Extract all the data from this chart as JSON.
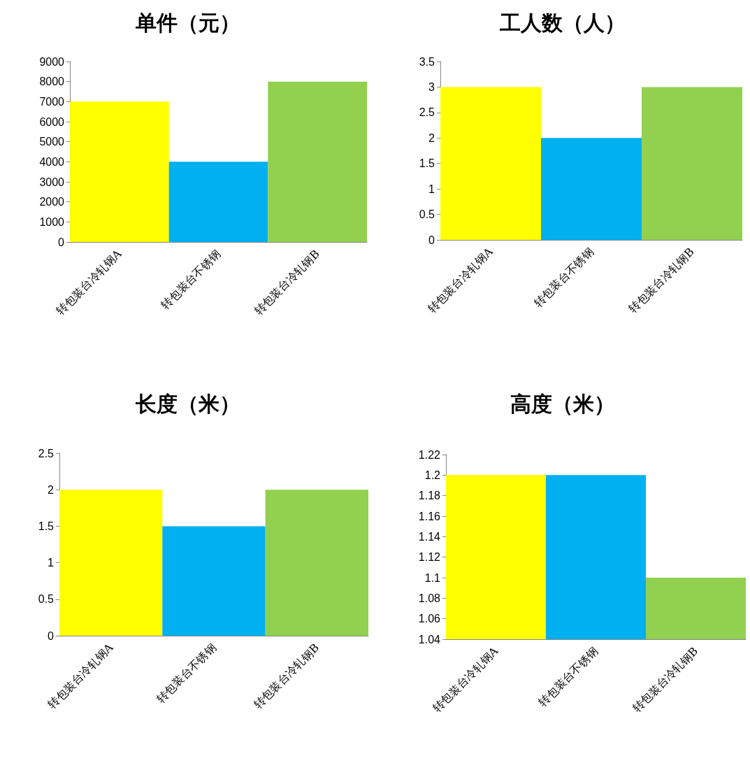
{
  "chart_data": [
    {
      "type": "bar",
      "title": "单件（元）",
      "categories": [
        "转包装台冷轧钢A",
        "转包装台不锈钢",
        "转包装台冷轧钢B"
      ],
      "values": [
        7000,
        4000,
        8000
      ],
      "colors": [
        "#ffff00",
        "#00b0f0",
        "#92d050"
      ],
      "ylim": [
        0,
        9000
      ],
      "yticks": [
        0,
        1000,
        2000,
        3000,
        4000,
        5000,
        6000,
        7000,
        8000,
        9000
      ]
    },
    {
      "type": "bar",
      "title": "工人数（人）",
      "categories": [
        "转包装台冷轧钢A",
        "转包装台不锈钢",
        "转包装台冷轧钢B"
      ],
      "values": [
        3,
        2,
        3
      ],
      "colors": [
        "#ffff00",
        "#00b0f0",
        "#92d050"
      ],
      "ylim": [
        0,
        3.5
      ],
      "yticks": [
        0,
        0.5,
        1,
        1.5,
        2,
        2.5,
        3,
        3.5
      ]
    },
    {
      "type": "bar",
      "title": "长度（米）",
      "categories": [
        "转包装台冷轧钢A",
        "转包装台不锈钢",
        "转包装台冷轧钢B"
      ],
      "values": [
        2,
        1.5,
        2
      ],
      "colors": [
        "#ffff00",
        "#00b0f0",
        "#92d050"
      ],
      "ylim": [
        0,
        2.5
      ],
      "yticks": [
        0,
        0.5,
        1,
        1.5,
        2,
        2.5
      ]
    },
    {
      "type": "bar",
      "title": "高度（米）",
      "categories": [
        "转包装台冷轧钢A",
        "转包装台不锈钢",
        "转包装台冷轧钢B"
      ],
      "values": [
        1.2,
        1.2,
        1.1
      ],
      "colors": [
        "#ffff00",
        "#00b0f0",
        "#92d050"
      ],
      "ylim": [
        1.04,
        1.22
      ],
      "yticks": [
        1.04,
        1.06,
        1.08,
        1.1,
        1.12,
        1.14,
        1.16,
        1.18,
        1.2,
        1.22
      ]
    }
  ]
}
